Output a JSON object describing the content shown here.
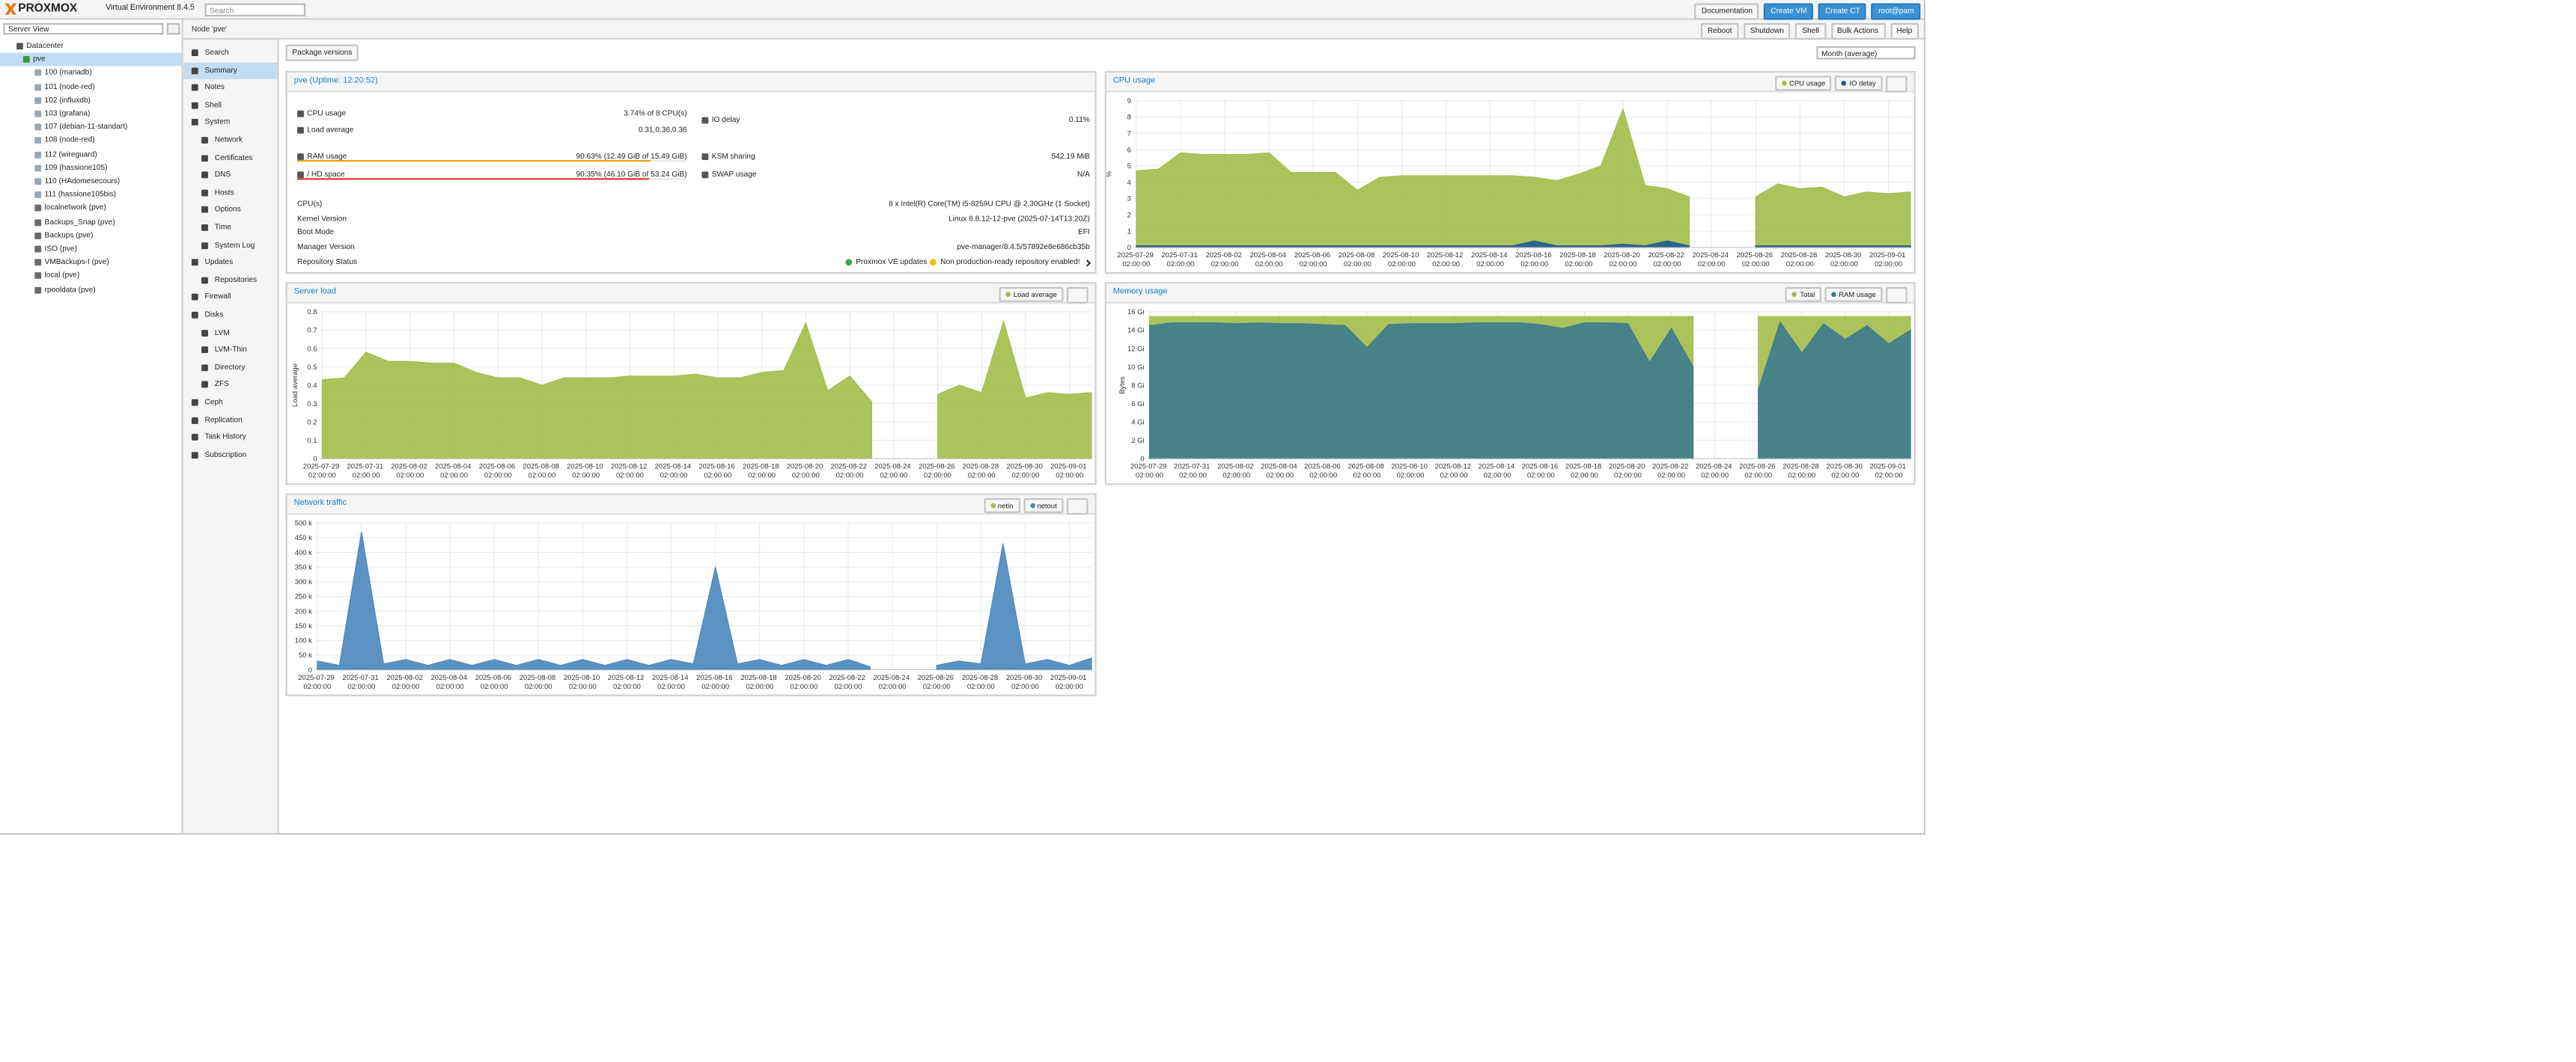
{
  "header": {
    "logo": "PROXMOX",
    "product": "Virtual Environment 8.4.5",
    "search": "Search",
    "buttons": [
      "Documentation",
      "Create VM",
      "Create CT"
    ],
    "user": "root@pam"
  },
  "tree": {
    "view": "Server View",
    "root": "Datacenter",
    "node": "pve",
    "children": [
      "100 (mariadb)",
      "101 (node-red)",
      "102 (influxdb)",
      "103 (grafana)",
      "107 (debian-11-standart)",
      "108 (node-red)",
      "112 (wireguard)",
      "109 (hassione105)",
      "110 (HAdomesecours)",
      "111 (hassione105bis)",
      "localnetwork (pve)",
      "Backups_Snap (pve)",
      "Backups (pve)",
      "ISO (pve)",
      "VMBackups-I (pve)",
      "local (pve)",
      "rpooldata (pve)"
    ]
  },
  "menu": [
    {
      "label": "Search"
    },
    {
      "label": "Summary",
      "selected": true
    },
    {
      "label": "Notes"
    },
    {
      "label": "Shell"
    },
    {
      "label": "System",
      "items": [
        "Network",
        "Certificates",
        "DNS",
        "Hosts",
        "Options",
        "Time",
        "System Log"
      ]
    },
    {
      "label": "Updates",
      "items": [
        "Repositories"
      ]
    },
    {
      "label": "Firewall"
    },
    {
      "label": "Disks",
      "items": [
        "LVM",
        "LVM-Thin",
        "Directory",
        "ZFS"
      ]
    },
    {
      "label": "Ceph"
    },
    {
      "label": "Replication"
    },
    {
      "label": "Task History"
    },
    {
      "label": "Subscription"
    }
  ],
  "node_bar": {
    "title": "Node 'pve'",
    "buttons": [
      "Reboot",
      "Shutdown",
      "Shell",
      "Bulk Actions",
      "Help"
    ]
  },
  "toolbar": {
    "button": "Package versions",
    "timeframe": "Month (average)"
  },
  "status": {
    "title": "pve (Uptime: 12:20:52)",
    "rows": [
      {
        "label": "CPU usage",
        "value": "3.74% of 8 CPU(s)"
      },
      {
        "label": "IO delay",
        "value": "0.11%"
      },
      {
        "label": "Load average",
        "value": "0.31,0.36,0.36"
      },
      {
        "label": "RAM usage",
        "value": "90.63% (12.49 GiB of 15.49 GiB)",
        "percent": 90.63,
        "bar_color": "#f0a30a"
      },
      {
        "label": "KSM sharing",
        "value": "542.19 MiB"
      },
      {
        "label": "/ HD space",
        "value": "90.35% (46.10 GiB of 53.24 GiB)",
        "percent": 90.35,
        "bar_color": "#e0372f"
      },
      {
        "label": "SWAP usage",
        "value": "N/A"
      }
    ],
    "info": [
      {
        "label": "CPU(s)",
        "value": "8 x Intel(R) Core(TM) i5-8259U CPU @ 2.30GHz (1 Socket)"
      },
      {
        "label": "Kernel Version",
        "value": "Linux 6.8.12-12-pve (2025-07-14T13:20Z)"
      },
      {
        "label": "Boot Mode",
        "value": "EFI"
      },
      {
        "label": "Manager Version",
        "value": "pve-manager/8.4.5/57892e8e686cb35b"
      }
    ],
    "repository": {
      "label": "Repository Status",
      "items": [
        "Proxmox VE updates",
        "Non production-ready repository enabled!"
      ]
    }
  },
  "chart_data": [
    {
      "type": "area",
      "title": "CPU usage",
      "ylabel": "%",
      "legend": "top-right",
      "grid": true,
      "x": [
        "2025-07-29 02:00:00",
        "2025-07-30 02:00:00",
        "2025-07-31 02:00:00",
        "2025-08-01 02:00:00",
        "2025-08-02 02:00:00",
        "2025-08-03 02:00:00",
        "2025-08-04 02:00:00",
        "2025-08-05 02:00:00",
        "2025-08-06 02:00:00",
        "2025-08-07 02:00:00",
        "2025-08-08 02:00:00",
        "2025-08-09 02:00:00",
        "2025-08-10 02:00:00",
        "2025-08-11 02:00:00",
        "2025-08-12 02:00:00",
        "2025-08-13 02:00:00",
        "2025-08-14 02:00:00",
        "2025-08-15 02:00:00",
        "2025-08-16 02:00:00",
        "2025-08-17 02:00:00",
        "2025-08-18 02:00:00",
        "2025-08-19 02:00:00",
        "2025-08-20 02:00:00",
        "2025-08-21 02:00:00",
        "2025-08-22 02:00:00",
        "2025-08-23 02:00:00",
        "2025-08-24 02:00:00",
        "2025-08-25 02:00:00",
        "2025-08-26 02:00:00",
        "2025-08-27 02:00:00",
        "2025-08-28 02:00:00",
        "2025-08-29 02:00:00",
        "2025-08-30 02:00:00",
        "2025-08-31 02:00:00",
        "2025-09-01 02:00:00",
        "2025-09-02 02:00:00"
      ],
      "xlim": [
        "2025-07-29 00:00:00",
        "2025-09-02 02:00:00"
      ],
      "xticks": [
        "2025-07-29 02:00:00",
        "2025-07-31 02:00:00",
        "2025-08-02 02:00:00",
        "2025-08-04 02:00:00",
        "2025-08-06 02:00:00",
        "2025-08-08 02:00:00",
        "2025-08-10 02:00:00",
        "2025-08-12 02:00:00",
        "2025-08-14 02:00:00",
        "2025-08-16 02:00:00",
        "2025-08-18 02:00:00",
        "2025-08-20 02:00:00",
        "2025-08-22 02:00:00",
        "2025-08-24 02:00:00",
        "2025-08-26 02:00:00",
        "2025-08-28 02:00:00",
        "2025-08-30 02:00:00",
        "2025-09-01 02:00:00"
      ],
      "ylim": [
        0,
        9
      ],
      "yticks": [
        0,
        1,
        2,
        3,
        4,
        5,
        6,
        7,
        8,
        9
      ],
      "series": [
        {
          "name": "CPU usage",
          "color": "#a3bd4a",
          "values": [
            4.7,
            4.8,
            5.8,
            5.7,
            5.7,
            5.7,
            5.8,
            4.6,
            4.6,
            4.6,
            3.5,
            4.3,
            4.4,
            4.4,
            4.4,
            4.4,
            4.4,
            4.4,
            4.3,
            4.1,
            4.5,
            5.0,
            8.5,
            3.8,
            3.6,
            3.1,
            null,
            null,
            3.1,
            3.9,
            3.6,
            3.7,
            3.1,
            3.4,
            3.3,
            3.4
          ]
        },
        {
          "name": "IO delay",
          "color": "#1f5b93",
          "values": [
            0.1,
            0.1,
            0.1,
            0.1,
            0.1,
            0.1,
            0.1,
            0.1,
            0.1,
            0.1,
            0.1,
            0.1,
            0.1,
            0.1,
            0.1,
            0.1,
            0.1,
            0.1,
            0.4,
            0.1,
            0.1,
            0.1,
            0.2,
            0.1,
            0.4,
            0.1,
            null,
            null,
            0.1,
            0.1,
            0.1,
            0.1,
            0.1,
            0.1,
            0.1,
            0.1
          ]
        }
      ]
    },
    {
      "type": "area",
      "title": "Server load",
      "ylabel": "Load average",
      "legend": "top-right",
      "grid": true,
      "x": [
        "2025-07-29 02:00:00",
        "2025-07-30 02:00:00",
        "2025-07-31 02:00:00",
        "2025-08-01 02:00:00",
        "2025-08-02 02:00:00",
        "2025-08-03 02:00:00",
        "2025-08-04 02:00:00",
        "2025-08-05 02:00:00",
        "2025-08-06 02:00:00",
        "2025-08-07 02:00:00",
        "2025-08-08 02:00:00",
        "2025-08-09 02:00:00",
        "2025-08-10 02:00:00",
        "2025-08-11 02:00:00",
        "2025-08-12 02:00:00",
        "2025-08-13 02:00:00",
        "2025-08-14 02:00:00",
        "2025-08-15 02:00:00",
        "2025-08-16 02:00:00",
        "2025-08-17 02:00:00",
        "2025-08-18 02:00:00",
        "2025-08-19 02:00:00",
        "2025-08-20 02:00:00",
        "2025-08-21 02:00:00",
        "2025-08-22 02:00:00",
        "2025-08-23 02:00:00",
        "2025-08-24 02:00:00",
        "2025-08-25 02:00:00",
        "2025-08-26 02:00:00",
        "2025-08-27 02:00:00",
        "2025-08-28 02:00:00",
        "2025-08-29 02:00:00",
        "2025-08-30 02:00:00",
        "2025-08-31 02:00:00",
        "2025-09-01 02:00:00",
        "2025-09-02 02:00:00"
      ],
      "xlim": [
        "2025-07-29 00:00:00",
        "2025-09-02 02:00:00"
      ],
      "xticks": [
        "2025-07-29 02:00:00",
        "2025-07-31 02:00:00",
        "2025-08-02 02:00:00",
        "2025-08-04 02:00:00",
        "2025-08-06 02:00:00",
        "2025-08-08 02:00:00",
        "2025-08-10 02:00:00",
        "2025-08-12 02:00:00",
        "2025-08-14 02:00:00",
        "2025-08-16 02:00:00",
        "2025-08-18 02:00:00",
        "2025-08-20 02:00:00",
        "2025-08-22 02:00:00",
        "2025-08-24 02:00:00",
        "2025-08-26 02:00:00",
        "2025-08-28 02:00:00",
        "2025-08-30 02:00:00",
        "2025-09-01 02:00:00"
      ],
      "ylim": [
        0,
        0.8
      ],
      "yticks": [
        0,
        0.1,
        0.2,
        0.3,
        0.4,
        0.5,
        0.6,
        0.7,
        0.8
      ],
      "series": [
        {
          "name": "Load average",
          "color": "#a3bd4a",
          "values": [
            0.43,
            0.44,
            0.58,
            0.53,
            0.53,
            0.52,
            0.52,
            0.47,
            0.44,
            0.44,
            0.4,
            0.44,
            0.44,
            0.44,
            0.45,
            0.45,
            0.45,
            0.46,
            0.44,
            0.44,
            0.47,
            0.48,
            0.74,
            0.37,
            0.45,
            0.31,
            null,
            null,
            0.35,
            0.4,
            0.36,
            0.75,
            0.33,
            0.36,
            0.35,
            0.36
          ]
        }
      ]
    },
    {
      "type": "area",
      "title": "Memory usage",
      "ylabel": "Bytes",
      "legend": "top-right",
      "grid": true,
      "x": [
        "2025-07-29 02:00:00",
        "2025-07-30 02:00:00",
        "2025-07-31 02:00:00",
        "2025-08-01 02:00:00",
        "2025-08-02 02:00:00",
        "2025-08-03 02:00:00",
        "2025-08-04 02:00:00",
        "2025-08-05 02:00:00",
        "2025-08-06 02:00:00",
        "2025-08-07 02:00:00",
        "2025-08-08 02:00:00",
        "2025-08-09 02:00:00",
        "2025-08-10 02:00:00",
        "2025-08-11 02:00:00",
        "2025-08-12 02:00:00",
        "2025-08-13 02:00:00",
        "2025-08-14 02:00:00",
        "2025-08-15 02:00:00",
        "2025-08-16 02:00:00",
        "2025-08-17 02:00:00",
        "2025-08-18 02:00:00",
        "2025-08-19 02:00:00",
        "2025-08-20 02:00:00",
        "2025-08-21 02:00:00",
        "2025-08-22 02:00:00",
        "2025-08-23 02:00:00",
        "2025-08-24 02:00:00",
        "2025-08-25 02:00:00",
        "2025-08-26 02:00:00",
        "2025-08-27 02:00:00",
        "2025-08-28 02:00:00",
        "2025-08-29 02:00:00",
        "2025-08-30 02:00:00",
        "2025-08-31 02:00:00",
        "2025-09-01 02:00:00",
        "2025-09-02 02:00:00"
      ],
      "xlim": [
        "2025-07-29 00:00:00",
        "2025-09-02 02:00:00"
      ],
      "xticks": [
        "2025-07-29 02:00:00",
        "2025-07-31 02:00:00",
        "2025-08-02 02:00:00",
        "2025-08-04 02:00:00",
        "2025-08-06 02:00:00",
        "2025-08-08 02:00:00",
        "2025-08-10 02:00:00",
        "2025-08-12 02:00:00",
        "2025-08-14 02:00:00",
        "2025-08-16 02:00:00",
        "2025-08-18 02:00:00",
        "2025-08-20 02:00:00",
        "2025-08-22 02:00:00",
        "2025-08-24 02:00:00",
        "2025-08-26 02:00:00",
        "2025-08-28 02:00:00",
        "2025-08-30 02:00:00",
        "2025-09-01 02:00:00"
      ],
      "ylim": [
        0,
        16
      ],
      "yticks": [
        0,
        {
          "value": 2,
          "label": "2 Gi"
        },
        {
          "value": 4,
          "label": "4 Gi"
        },
        {
          "value": 6,
          "label": "6 Gi"
        },
        {
          "value": 8,
          "label": "8 Gi"
        },
        {
          "value": 10,
          "label": "10 Gi"
        },
        {
          "value": 12,
          "label": "12 Gi"
        },
        {
          "value": 14,
          "label": "14 Gi"
        },
        {
          "value": 16,
          "label": "16 Gi"
        }
      ],
      "series": [
        {
          "name": "Total",
          "color": "#a3bd4a",
          "values": [
            15.49,
            15.49,
            15.49,
            15.49,
            15.49,
            15.49,
            15.49,
            15.49,
            15.49,
            15.49,
            15.49,
            15.49,
            15.49,
            15.49,
            15.49,
            15.49,
            15.49,
            15.49,
            15.49,
            15.49,
            15.49,
            15.49,
            15.49,
            15.49,
            15.49,
            15.49,
            null,
            null,
            15.49,
            15.49,
            15.49,
            15.49,
            15.49,
            15.49,
            15.49,
            15.49
          ]
        },
        {
          "name": "RAM usage",
          "color": "#3c7b8e",
          "values": [
            14.5,
            14.8,
            14.8,
            14.8,
            14.7,
            14.8,
            14.7,
            14.7,
            14.6,
            14.5,
            12.1,
            14.6,
            14.7,
            14.7,
            14.7,
            14.8,
            14.8,
            14.8,
            14.6,
            14.2,
            14.8,
            14.8,
            14.7,
            10.5,
            14.2,
            10.0,
            null,
            null,
            7.5,
            14.9,
            11.5,
            14.7,
            13.0,
            14.5,
            12.5,
            14.0
          ]
        }
      ]
    },
    {
      "type": "area",
      "title": "Network traffic",
      "legend": "top-right",
      "grid": true,
      "x": [
        "2025-07-29 02:00:00",
        "2025-07-30 02:00:00",
        "2025-07-31 02:00:00",
        "2025-08-01 02:00:00",
        "2025-08-02 02:00:00",
        "2025-08-03 02:00:00",
        "2025-08-04 02:00:00",
        "2025-08-05 02:00:00",
        "2025-08-06 02:00:00",
        "2025-08-07 02:00:00",
        "2025-08-08 02:00:00",
        "2025-08-09 02:00:00",
        "2025-08-10 02:00:00",
        "2025-08-11 02:00:00",
        "2025-08-12 02:00:00",
        "2025-08-13 02:00:00",
        "2025-08-14 02:00:00",
        "2025-08-15 02:00:00",
        "2025-08-16 02:00:00",
        "2025-08-17 02:00:00",
        "2025-08-18 02:00:00",
        "2025-08-19 02:00:00",
        "2025-08-20 02:00:00",
        "2025-08-21 02:00:00",
        "2025-08-22 02:00:00",
        "2025-08-23 02:00:00",
        "2025-08-24 02:00:00",
        "2025-08-25 02:00:00",
        "2025-08-26 02:00:00",
        "2025-08-27 02:00:00",
        "2025-08-28 02:00:00",
        "2025-08-29 02:00:00",
        "2025-08-30 02:00:00",
        "2025-08-31 02:00:00",
        "2025-09-01 02:00:00",
        "2025-09-02 02:00:00"
      ],
      "xlim": [
        "2025-07-29 00:00:00",
        "2025-09-02 02:00:00"
      ],
      "xticks": [
        "2025-07-29 02:00:00",
        "2025-07-31 02:00:00",
        "2025-08-02 02:00:00",
        "2025-08-04 02:00:00",
        "2025-08-06 02:00:00",
        "2025-08-08 02:00:00",
        "2025-08-10 02:00:00",
        "2025-08-12 02:00:00",
        "2025-08-14 02:00:00",
        "2025-08-16 02:00:00",
        "2025-08-18 02:00:00",
        "2025-08-20 02:00:00",
        "2025-08-22 02:00:00",
        "2025-08-24 02:00:00",
        "2025-08-26 02:00:00",
        "2025-08-28 02:00:00",
        "2025-08-30 02:00:00",
        "2025-09-01 02:00:00"
      ],
      "ylim": [
        0,
        500000
      ],
      "yticks": [
        0,
        {
          "value": 50000,
          "label": "50 k"
        },
        {
          "value": 100000,
          "label": "100 k"
        },
        {
          "value": 150000,
          "label": "150 k"
        },
        {
          "value": 200000,
          "label": "200 k"
        },
        {
          "value": 250000,
          "label": "250 k"
        },
        {
          "value": 300000,
          "label": "300 k"
        },
        {
          "value": 350000,
          "label": "350 k"
        },
        {
          "value": 400000,
          "label": "400 k"
        },
        {
          "value": 450000,
          "label": "450 k"
        },
        {
          "value": 500000,
          "label": "500 k"
        }
      ],
      "series": [
        {
          "name": "netin",
          "color": "#a3bd4a",
          "values": [
            4000,
            3000,
            5000,
            3000,
            4000,
            3000,
            4000,
            3000,
            4000,
            3000,
            4000,
            3000,
            4000,
            3000,
            4000,
            3000,
            4000,
            3000,
            6000,
            3000,
            4000,
            3000,
            4000,
            3000,
            4000,
            3000,
            null,
            null,
            3000,
            4000,
            3000,
            8000,
            3000,
            4000,
            3000,
            4000
          ]
        },
        {
          "name": "netout",
          "color": "#4a87bd",
          "values": [
            30000,
            15000,
            470000,
            20000,
            35000,
            15000,
            35000,
            15000,
            35000,
            15000,
            35000,
            15000,
            35000,
            15000,
            35000,
            15000,
            35000,
            20000,
            350000,
            20000,
            35000,
            15000,
            35000,
            15000,
            35000,
            10000,
            null,
            null,
            15000,
            30000,
            20000,
            430000,
            20000,
            35000,
            15000,
            40000
          ]
        }
      ]
    }
  ]
}
